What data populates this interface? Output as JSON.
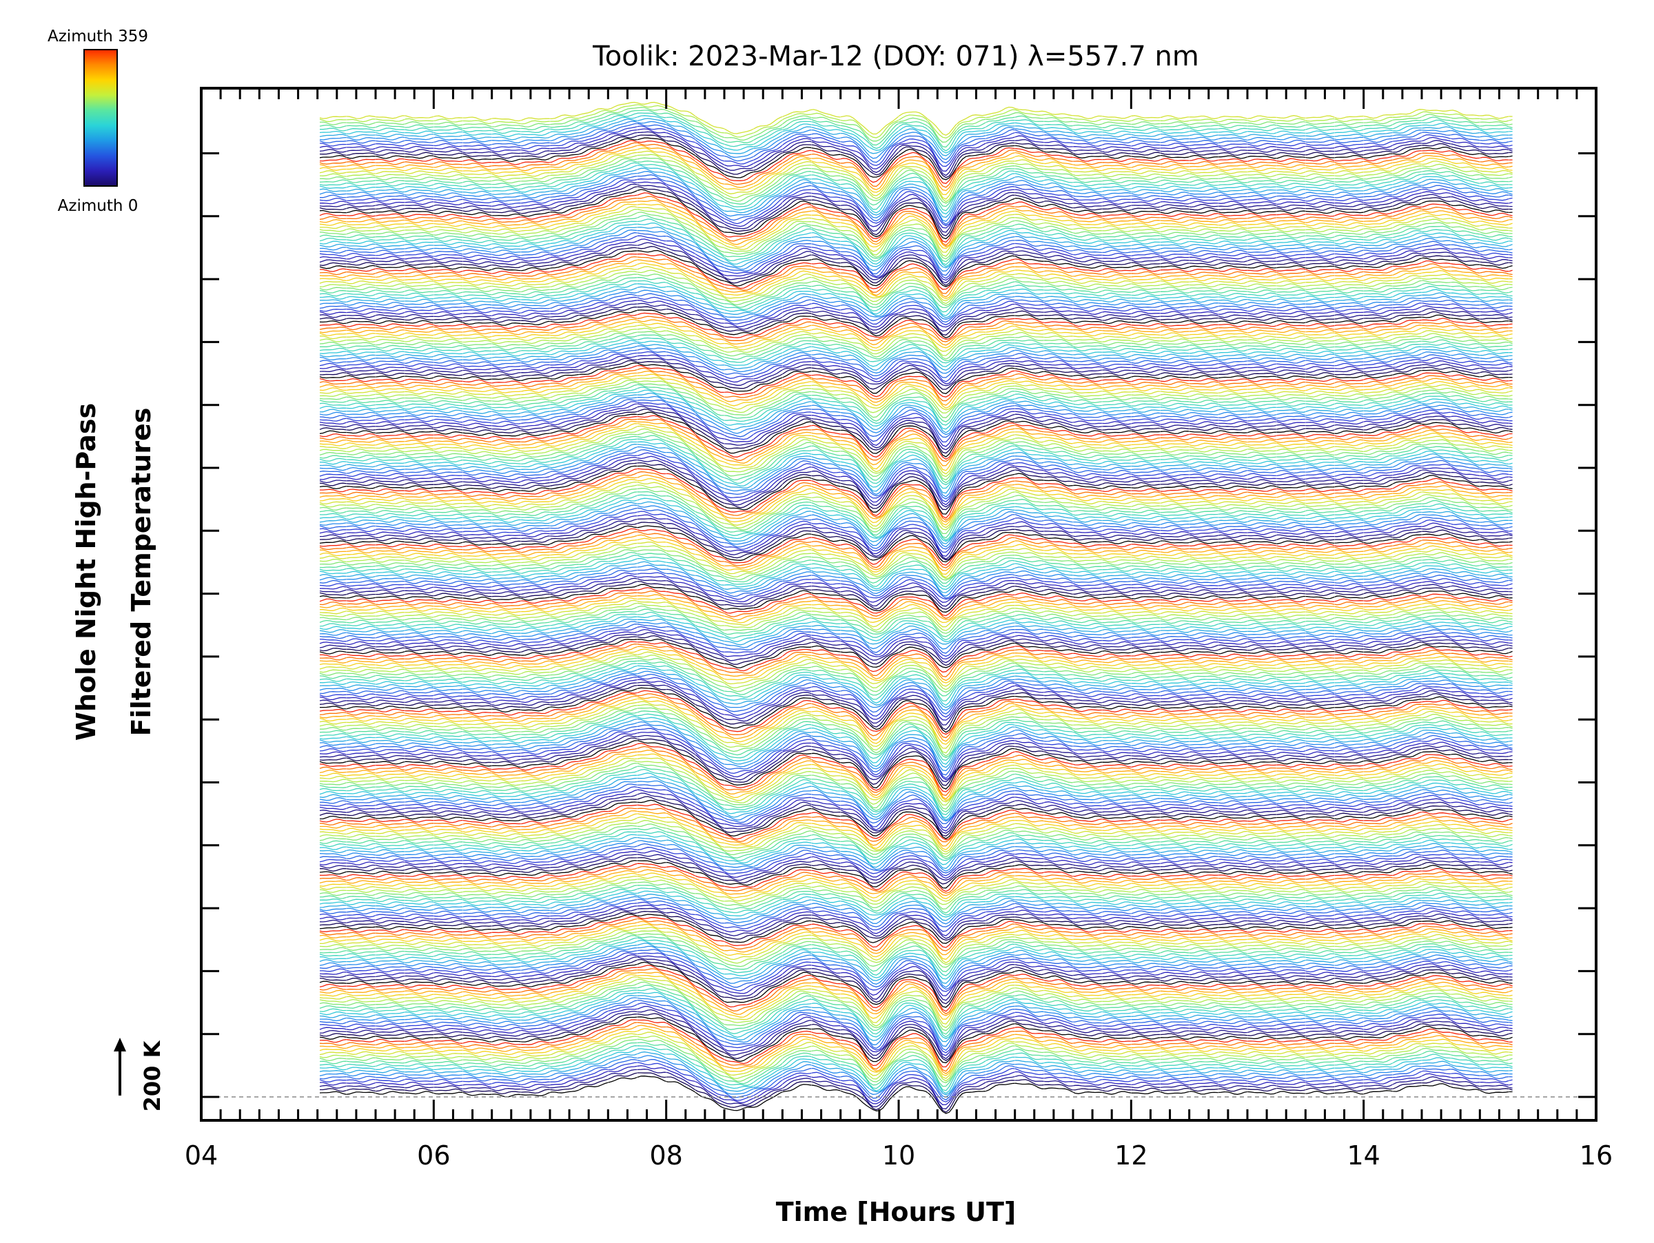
{
  "chart_data": {
    "type": "line",
    "title": "Toolik: 2023-Mar-12 (DOY: 071) λ=557.7 nm",
    "xlabel": "Time [Hours UT]",
    "ylabel_line1": "Whole Night High-Pass",
    "ylabel_line2": "Filtered Temperatures",
    "xlim": [
      4,
      16
    ],
    "x_ticks": [
      "04",
      "06",
      "08",
      "10",
      "12",
      "14",
      "16"
    ],
    "x_range_data": [
      5.02,
      15.28
    ],
    "scale_bar_label": "200 K",
    "colorbar": {
      "top_label": "Azimuth 359",
      "bottom_label": "Azimuth 0",
      "colors": [
        "#ff2a00",
        "#ff8a00",
        "#ffd400",
        "#c4f03c",
        "#5ae6a0",
        "#2ad4d8",
        "#1f9ae6",
        "#2456e0",
        "#2a1fb8",
        "#1a0a66"
      ]
    },
    "dip_times_hours_ut": [
      8.6,
      9.8,
      10.4
    ],
    "peak_times_hours_ut": [
      7.8,
      11.0,
      14.6
    ],
    "trace_count_approx": 320,
    "grid": true
  }
}
